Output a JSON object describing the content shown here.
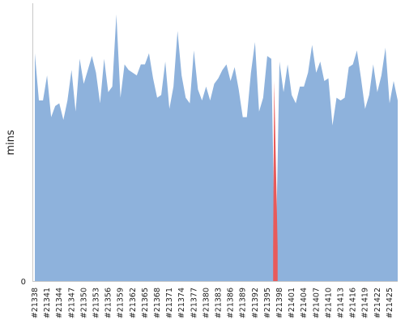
{
  "chart_data": {
    "type": "area",
    "title": "",
    "xlabel": "",
    "ylabel": "mins",
    "y_tick_labels": [
      "0"
    ],
    "ylim": [
      0,
      100
    ],
    "grid": false,
    "legend": "none",
    "colors": {
      "normal": "#8eb2dc",
      "failed": "#e85a5a"
    },
    "x_tick_labels": [
      "#21338",
      "#21341",
      "#21344",
      "#21347",
      "#21350",
      "#21353",
      "#21356",
      "#21359",
      "#21362",
      "#21365",
      "#21368",
      "#21371",
      "#21374",
      "#21377",
      "#21380",
      "#21383",
      "#21386",
      "#21389",
      "#21392",
      "#21395",
      "#21398",
      "#21401",
      "#21404",
      "#21407",
      "#21410",
      "#21413",
      "#21416",
      "#21419",
      "#21422",
      "#21425"
    ],
    "x": [
      21338,
      21339,
      21340,
      21341,
      21342,
      21343,
      21344,
      21345,
      21346,
      21347,
      21348,
      21349,
      21350,
      21351,
      21352,
      21353,
      21354,
      21355,
      21356,
      21357,
      21358,
      21359,
      21360,
      21361,
      21362,
      21363,
      21364,
      21365,
      21366,
      21367,
      21368,
      21369,
      21370,
      21371,
      21372,
      21373,
      21374,
      21375,
      21376,
      21377,
      21378,
      21379,
      21380,
      21381,
      21382,
      21383,
      21384,
      21385,
      21386,
      21387,
      21388,
      21389,
      21390,
      21391,
      21392,
      21393,
      21394,
      21395,
      21396,
      21397,
      21398,
      21399,
      21400,
      21401,
      21402,
      21403,
      21404,
      21405,
      21406,
      21407,
      21408,
      21409,
      21410,
      21411,
      21412,
      21413,
      21414,
      21415,
      21416,
      21417,
      21418,
      21419,
      21420,
      21421,
      21422,
      21423,
      21424,
      21425,
      21426,
      21427
    ],
    "values": [
      82,
      65,
      65,
      74,
      59,
      63,
      64,
      58,
      65,
      76,
      61,
      80,
      71,
      76,
      81,
      75,
      64,
      80,
      68,
      70,
      96,
      66,
      78,
      76,
      75,
      74,
      78,
      78,
      82,
      73,
      66,
      67,
      79,
      62,
      70,
      90,
      74,
      66,
      64,
      83,
      69,
      65,
      70,
      65,
      71,
      73,
      76,
      78,
      72,
      77,
      69,
      59,
      59,
      75,
      86,
      61,
      66,
      81,
      80,
      0,
      79,
      68,
      78,
      67,
      64,
      70,
      70,
      75,
      85,
      75,
      79,
      72,
      73,
      56,
      66,
      65,
      66,
      77,
      78,
      83,
      73,
      62,
      67,
      78,
      68,
      74,
      84,
      64,
      72,
      65
    ],
    "failed_builds": [
      21397
    ]
  }
}
